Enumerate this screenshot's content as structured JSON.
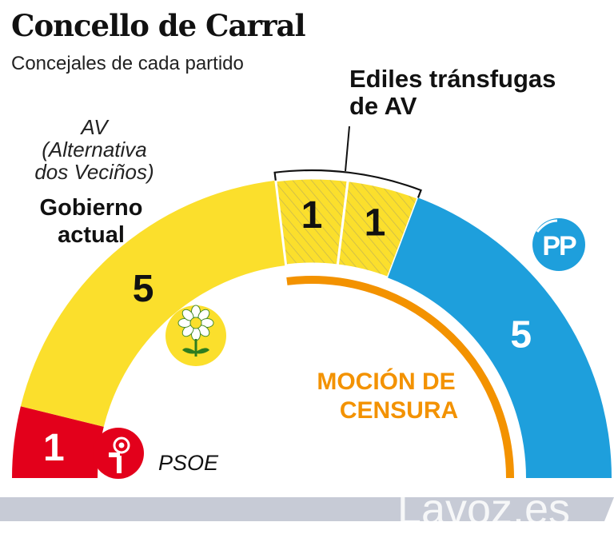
{
  "header": {
    "title": "Concello de Carral",
    "subtitle": "Concejales de cada partido"
  },
  "annotations": {
    "av_label_lines": [
      "AV",
      "(Alternativa",
      "dos Veciños)"
    ],
    "gobierno_lines": [
      "Gobierno",
      "actual"
    ],
    "transfugas_lines": [
      "Ediles tránsfugas",
      "de AV"
    ],
    "mocion_lines": [
      "MOCIÓN DE",
      "CENSURA"
    ],
    "psoe_label": "PSOE",
    "pp_logo_text": "PP",
    "watermark": "Lavoz.es"
  },
  "chart_data": {
    "type": "pie",
    "subtype": "parliament-semicircle",
    "total": 13,
    "segments": [
      {
        "party": "PSOE",
        "label": "1",
        "value": 1,
        "color": "#e3001b",
        "label_color": "#ffffff"
      },
      {
        "party": "AV",
        "label": "5",
        "value": 5,
        "color": "#fbdf2c",
        "label_color": "#111111"
      },
      {
        "party": "AV",
        "label": "1",
        "value": 1,
        "color": "#fbdf2c",
        "label_color": "#111111",
        "hatched": true
      },
      {
        "party": "AV",
        "label": "1",
        "value": 1,
        "color": "#fbdf2c",
        "label_color": "#111111",
        "hatched": true
      },
      {
        "party": "PP",
        "label": "5",
        "value": 5,
        "color": "#1e9fdc",
        "label_color": "#ffffff"
      }
    ],
    "colors": {
      "mocion": "#f39200",
      "av_logo_bg": "#fbdf2c",
      "pp_logo_bg": "#1e9fdc",
      "psoe_logo_bg": "#e3001b",
      "footer_bar": "#c7cbd6"
    }
  }
}
